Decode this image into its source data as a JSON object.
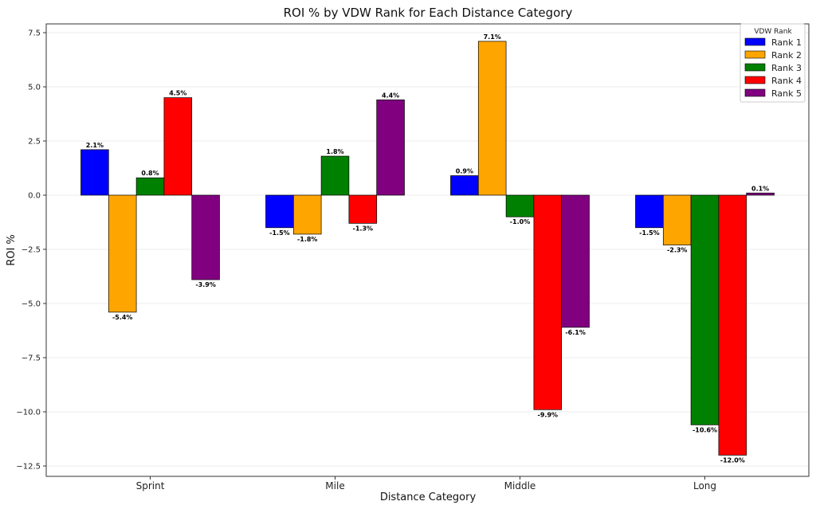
{
  "chart_data": {
    "type": "bar",
    "title": "ROI % by VDW Rank for Each Distance Category",
    "xlabel": "Distance Category",
    "ylabel": "ROI %",
    "categories": [
      "Sprint",
      "Mile",
      "Middle",
      "Long"
    ],
    "ylim": [
      -13,
      8.0
    ],
    "yticks": [
      7.5,
      5.0,
      2.5,
      0.0,
      -2.5,
      -5.0,
      -7.5,
      -10.0,
      -12.5
    ],
    "ytick_labels": [
      "7.5",
      "5.0",
      "2.5",
      "0.0",
      "−2.5",
      "−5.0",
      "−7.5",
      "−10.0",
      "−12.5"
    ],
    "grid": true,
    "legend": {
      "title": "VDW Rank",
      "position": "top-right"
    },
    "series": [
      {
        "name": "Rank 1",
        "color": "#0000ff",
        "values": [
          2.1,
          -1.5,
          0.9,
          -1.5
        ],
        "labels": [
          "2.1%",
          "-1.5%",
          "0.9%",
          "-1.5%"
        ]
      },
      {
        "name": "Rank 2",
        "color": "#ffa500",
        "values": [
          -5.4,
          -1.8,
          7.1,
          -2.3
        ],
        "labels": [
          "-5.4%",
          "-1.8%",
          "7.1%",
          "-2.3%"
        ]
      },
      {
        "name": "Rank 3",
        "color": "#008000",
        "values": [
          0.8,
          1.8,
          -1.0,
          -10.6
        ],
        "labels": [
          "0.8%",
          "1.8%",
          "-1.0%",
          "-10.6%"
        ]
      },
      {
        "name": "Rank 4",
        "color": "#ff0000",
        "values": [
          4.5,
          -1.3,
          -9.9,
          -12.0
        ],
        "labels": [
          "4.5%",
          "-1.3%",
          "-9.9%",
          "-12.0%"
        ]
      },
      {
        "name": "Rank 5",
        "color": "#800080",
        "values": [
          -3.9,
          4.4,
          -6.1,
          0.1
        ],
        "labels": [
          "-3.9%",
          "4.4%",
          "-6.1%",
          "0.1%"
        ]
      }
    ]
  }
}
